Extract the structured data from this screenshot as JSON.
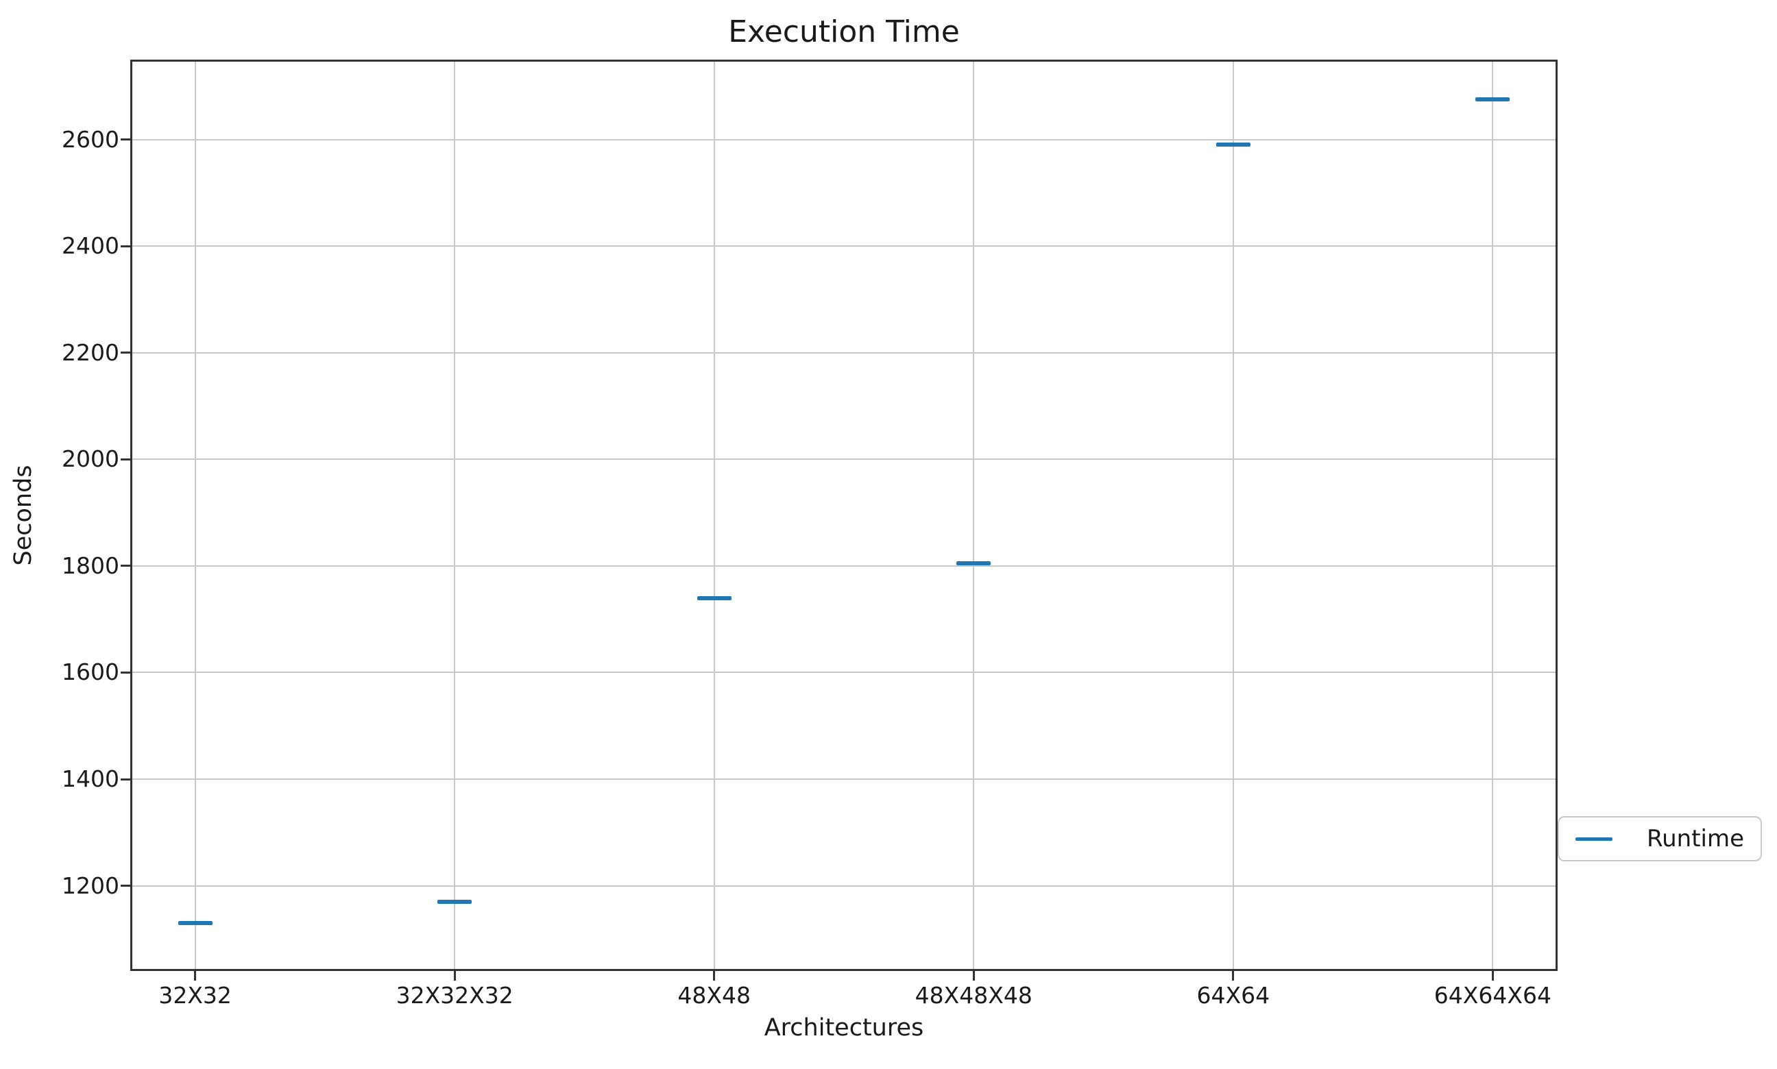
{
  "chart_data": {
    "type": "scatter",
    "title": "Execution Time",
    "xlabel": "Architectures",
    "ylabel": "Seconds",
    "categories": [
      "32X32",
      "32X32X32",
      "48X48",
      "48X48X48",
      "64X64",
      "64X64X64"
    ],
    "series": [
      {
        "name": "Runtime",
        "values": [
          1130,
          1170,
          1740,
          1805,
          2590,
          2675
        ]
      }
    ],
    "yticks": [
      1200,
      1400,
      1600,
      1800,
      2000,
      2200,
      2400,
      2600
    ],
    "ylim": [
      1040,
      2750
    ],
    "xlim": [
      -0.25,
      5.25
    ],
    "grid": true,
    "marker_style": "horizontal-dash",
    "legend_position": "outside-right",
    "colors": {
      "series": "#1f77b4",
      "grid": "#c9c9c9",
      "spine": "#333333",
      "text": "#1a1a1a",
      "legend_border": "#c9c9c9"
    }
  },
  "legend": {
    "label": "Runtime"
  }
}
